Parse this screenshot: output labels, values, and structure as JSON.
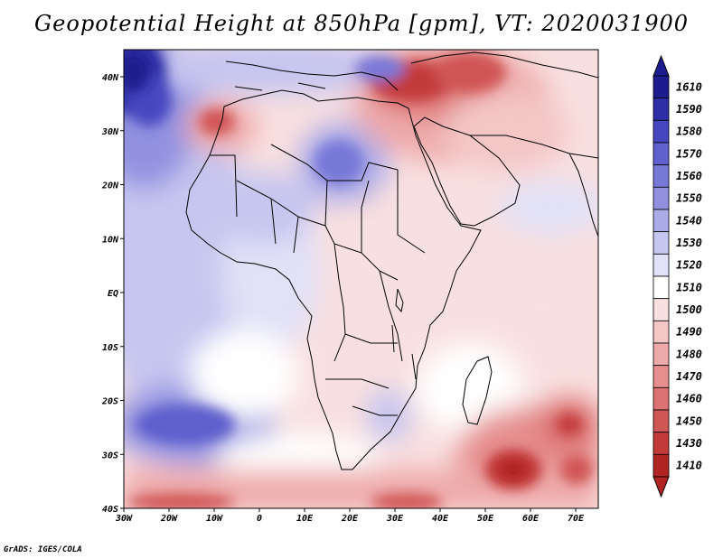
{
  "title": "Geopotential Height at 850hPa [gpm], VT: 2020031900",
  "credit": "GrADS: IGES/COLA",
  "axes": {
    "lon_ticks": [
      "30W",
      "20W",
      "10W",
      "0",
      "10E",
      "20E",
      "30E",
      "40E",
      "50E",
      "60E",
      "70E"
    ],
    "lat_ticks": [
      "40N",
      "30N",
      "20N",
      "10N",
      "EQ",
      "10S",
      "20S",
      "30S",
      "40S"
    ]
  },
  "colorbar": {
    "levels": [
      "1610",
      "1590",
      "1580",
      "1570",
      "1560",
      "1550",
      "1540",
      "1530",
      "1520",
      "1510",
      "1500",
      "1490",
      "1480",
      "1470",
      "1460",
      "1450",
      "1430",
      "1410"
    ],
    "colors": [
      "#1c1c8e",
      "#2e2ea6",
      "#4646c0",
      "#5f5fcd",
      "#7878d8",
      "#9191e0",
      "#ababe8",
      "#c6c6f0",
      "#e1e1f7",
      "#ffffff",
      "#f9e0e0",
      "#f4c6c6",
      "#eeaaaa",
      "#e68e8e",
      "#dc7272",
      "#d05555",
      "#c23a3a",
      "#b12424"
    ]
  },
  "map_data": {
    "region": "Africa and Middle East",
    "lon_range": [
      -30,
      75
    ],
    "lat_range": [
      -40,
      45
    ],
    "field": "850hPa geopotential height (gpm)",
    "features": [
      {
        "name": "high-atlantic-nw",
        "center": [
          -27,
          38
        ],
        "value": 1610
      },
      {
        "name": "high-south-atlantic",
        "center": [
          -15,
          -25
        ],
        "value": 1570
      },
      {
        "name": "high-central-sahara",
        "center": [
          18,
          22
        ],
        "value": 1560
      },
      {
        "name": "low-middle-east",
        "center": [
          45,
          35
        ],
        "value": 1450
      },
      {
        "name": "low-morocco",
        "center": [
          -6,
          32
        ],
        "value": 1470
      },
      {
        "name": "low-south-indian-ocean",
        "center": [
          58,
          -33
        ],
        "value": 1410
      },
      {
        "name": "low-south-indian-ocean-east",
        "center": [
          70,
          -26
        ],
        "value": 1430
      }
    ]
  }
}
